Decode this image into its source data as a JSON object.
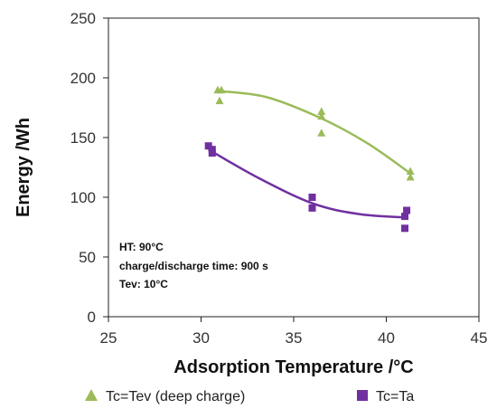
{
  "chart_data": {
    "type": "scatter",
    "title": "",
    "xlabel": "Adsorption Temperature /°C",
    "ylabel": "Energy /Wh",
    "xlim": [
      25,
      45
    ],
    "ylim": [
      0,
      250
    ],
    "xticks": [
      25,
      30,
      35,
      40,
      45
    ],
    "yticks": [
      0,
      50,
      100,
      150,
      200,
      250
    ],
    "grid": false,
    "legend_position": "bottom",
    "annotations": [
      "HT: 90°C",
      "charge/discharge time: 900 s",
      "Tev: 10°C"
    ],
    "series": [
      {
        "name": "Tc=Tev (deep charge)",
        "marker": "triangle",
        "color": "#9BBB59",
        "points": [
          {
            "x": 30.9,
            "y": 190
          },
          {
            "x": 31.1,
            "y": 190
          },
          {
            "x": 31.0,
            "y": 181
          },
          {
            "x": 36.5,
            "y": 172
          },
          {
            "x": 36.5,
            "y": 168
          },
          {
            "x": 36.5,
            "y": 154
          },
          {
            "x": 41.3,
            "y": 122
          },
          {
            "x": 41.3,
            "y": 117
          }
        ],
        "trend": [
          {
            "x": 30.9,
            "y": 189
          },
          {
            "x": 33.5,
            "y": 184
          },
          {
            "x": 36.5,
            "y": 166
          },
          {
            "x": 39.0,
            "y": 145
          },
          {
            "x": 41.3,
            "y": 120
          }
        ]
      },
      {
        "name": "Tc=Ta",
        "marker": "square",
        "color": "#7030A0",
        "points": [
          {
            "x": 30.4,
            "y": 143
          },
          {
            "x": 30.6,
            "y": 140
          },
          {
            "x": 30.6,
            "y": 137
          },
          {
            "x": 36.0,
            "y": 100
          },
          {
            "x": 36.0,
            "y": 91
          },
          {
            "x": 41.0,
            "y": 84
          },
          {
            "x": 41.1,
            "y": 89
          },
          {
            "x": 41.0,
            "y": 74
          }
        ],
        "trend": [
          {
            "x": 30.4,
            "y": 140
          },
          {
            "x": 33.0,
            "y": 117
          },
          {
            "x": 36.0,
            "y": 95
          },
          {
            "x": 38.5,
            "y": 86
          },
          {
            "x": 41.1,
            "y": 83
          }
        ]
      }
    ]
  }
}
